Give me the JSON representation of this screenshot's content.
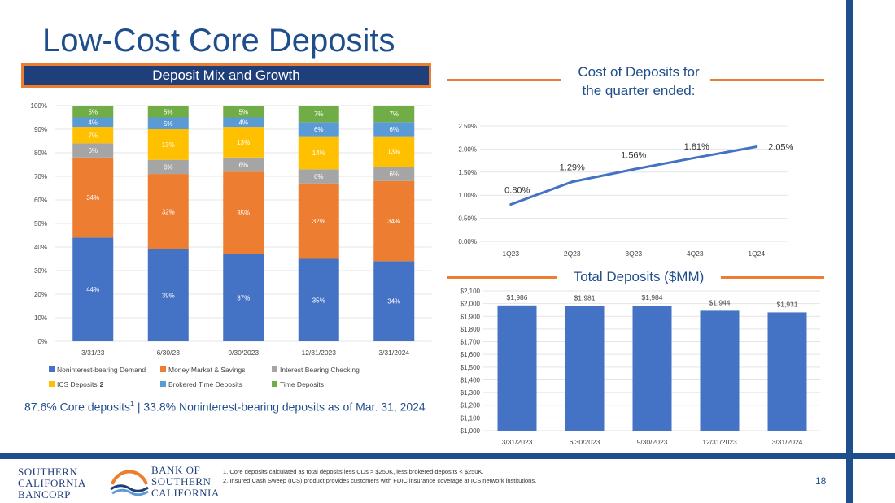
{
  "slide": {
    "title": "Low-Cost Core Deposits",
    "mix_header": "Deposit Mix and Growth",
    "cost_title_line1": "Cost of Deposits for",
    "cost_title_line2": "the quarter ended:",
    "total_title": "Total Deposits ($MM)",
    "core_note_a": "87.6% Core deposits",
    "core_note_sup": "1",
    "core_note_b": " | 33.8% Noninterest-bearing deposits as of Mar. 31, 2024",
    "footnote1": "1.      Core deposits calculated as total deposits less CDs > $250K, less brokered deposits < $250K.",
    "footnote2": "2.      Insured Cash Sweep (ICS) product provides customers with FDIC insurance coverage at ICS network institutions.",
    "page_number": "18",
    "logo_left": [
      "SOUTHERN",
      "CALIFORNIA",
      "BANCORP"
    ],
    "logo_right": [
      "BANK OF",
      "SOUTHERN",
      "CALIFORNIA"
    ]
  },
  "colors": {
    "navy": "#1f4e8c",
    "orange": "#ed7d31",
    "blue": "#4472c4",
    "gray": "#a5a5a5",
    "gold": "#ffc000",
    "lightblue": "#5b9bd5",
    "green": "#70ad47"
  },
  "chart_data": [
    {
      "type": "bar",
      "stacked": true,
      "title": "Deposit Mix and Growth",
      "categories": [
        "3/31/23",
        "6/30/23",
        "9/30/2023",
        "12/31/2023",
        "3/31/2024"
      ],
      "ylim": [
        0,
        100
      ],
      "yticks": [
        "0%",
        "10%",
        "20%",
        "30%",
        "40%",
        "50%",
        "60%",
        "70%",
        "80%",
        "90%",
        "100%"
      ],
      "series": [
        {
          "name": "Noninterest-bearing Demand",
          "color": "#4472c4",
          "values": [
            44,
            39,
            37,
            35,
            34
          ],
          "labels": [
            "44%",
            "39%",
            "37%",
            "35%",
            "34%"
          ]
        },
        {
          "name": "Money Market & Savings",
          "color": "#ed7d31",
          "values": [
            34,
            32,
            35,
            32,
            34
          ],
          "labels": [
            "34%",
            "32%",
            "35%",
            "32%",
            "34%"
          ]
        },
        {
          "name": "Interest Bearing Checking",
          "color": "#a5a5a5",
          "values": [
            6,
            6,
            6,
            6,
            6
          ],
          "labels": [
            "6%",
            "6%",
            "6%",
            "6%",
            "6%"
          ]
        },
        {
          "name": "ICS Deposits",
          "legend_sup": "2",
          "color": "#ffc000",
          "values": [
            7,
            13,
            13,
            14,
            13
          ],
          "labels": [
            "7%",
            "13%",
            "13%",
            "14%",
            "13%"
          ]
        },
        {
          "name": "Brokered Time Deposits",
          "color": "#5b9bd5",
          "values": [
            4,
            5,
            4,
            6,
            6
          ],
          "labels": [
            "4%",
            "5%",
            "4%",
            "6%",
            "6%"
          ]
        },
        {
          "name": "Time Deposits",
          "color": "#70ad47",
          "values": [
            5,
            5,
            5,
            7,
            7
          ],
          "labels": [
            "5%",
            "5%",
            "5%",
            "7%",
            "7%"
          ]
        }
      ]
    },
    {
      "type": "line",
      "title": "Cost of Deposits for the quarter ended:",
      "categories": [
        "1Q23",
        "2Q23",
        "3Q23",
        "4Q23",
        "1Q24"
      ],
      "values": [
        0.8,
        1.29,
        1.56,
        1.81,
        2.05
      ],
      "labels": [
        "0.80%",
        "1.29%",
        "1.56%",
        "1.81%",
        "2.05%"
      ],
      "ylim": [
        0,
        2.5
      ],
      "yticks": [
        "0.00%",
        "0.50%",
        "1.00%",
        "1.50%",
        "2.00%",
        "2.50%"
      ],
      "color": "#4472c4"
    },
    {
      "type": "bar",
      "title": "Total Deposits ($MM)",
      "categories": [
        "3/31/2023",
        "6/30/2023",
        "9/30/2023",
        "12/31/2023",
        "3/31/2024"
      ],
      "values": [
        1986,
        1981,
        1984,
        1944,
        1931
      ],
      "labels": [
        "$1,986",
        "$1,981",
        "$1,984",
        "$1,944",
        "$1,931"
      ],
      "ylim": [
        1000,
        2100
      ],
      "yticks": [
        "$1,000",
        "$1,100",
        "$1,200",
        "$1,300",
        "$1,400",
        "$1,500",
        "$1,600",
        "$1,700",
        "$1,800",
        "$1,900",
        "$2,000",
        "$2,100"
      ],
      "color": "#4472c4"
    }
  ]
}
